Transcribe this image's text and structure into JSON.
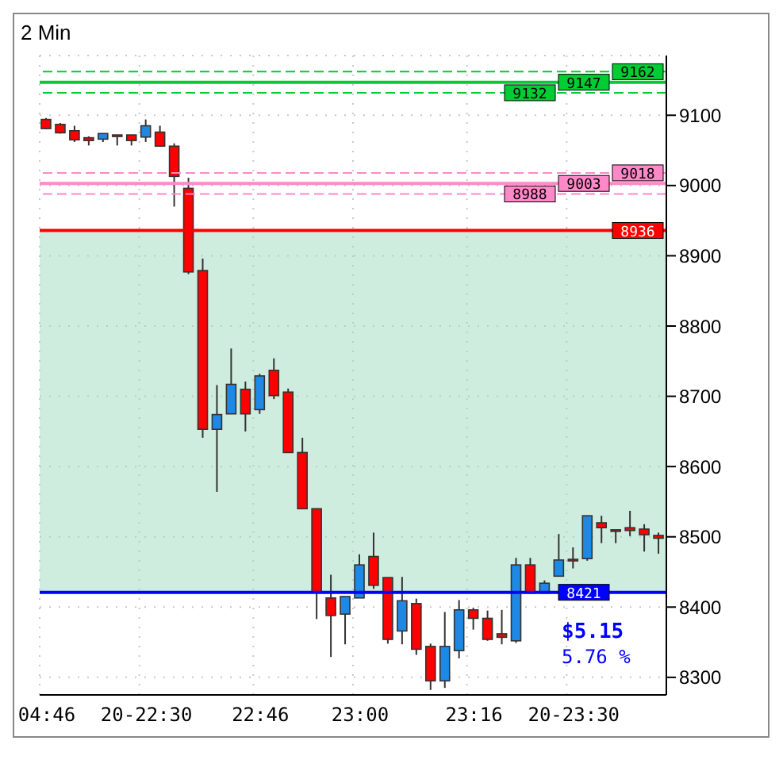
{
  "chart_data": {
    "type": "candlestick",
    "title": "2 Min",
    "categories": [
      "04:46",
      null,
      null,
      null,
      null,
      null,
      null,
      "20-22:30",
      null,
      null,
      null,
      null,
      null,
      null,
      null,
      "22:46",
      null,
      null,
      null,
      null,
      null,
      null,
      "23:00",
      null,
      null,
      null,
      null,
      null,
      null,
      null,
      "23:16",
      null,
      null,
      null,
      null,
      null,
      null,
      "20-23:30",
      null,
      null,
      null,
      null,
      null,
      null
    ],
    "ohlc": [
      [
        9094,
        9096,
        9080,
        9081
      ],
      [
        9087,
        9089,
        9074,
        9075
      ],
      [
        9078,
        9085,
        9062,
        9065
      ],
      [
        9068,
        9070,
        9057,
        9064
      ],
      [
        9066,
        9074,
        9062,
        9074
      ],
      [
        9072,
        9072,
        9057,
        9071
      ],
      [
        9072,
        9072,
        9057,
        9064
      ],
      [
        9069,
        9094,
        9062,
        9085
      ],
      [
        9076,
        9085,
        9056,
        9056
      ],
      [
        9056,
        9060,
        8970,
        9013
      ],
      [
        8996,
        9011,
        8874,
        8877
      ],
      [
        8879,
        8896,
        8641,
        8653
      ],
      [
        8653,
        8716,
        8564,
        8674
      ],
      [
        8675,
        8768,
        8675,
        8717
      ],
      [
        8710,
        8721,
        8650,
        8675
      ],
      [
        8681,
        8732,
        8675,
        8729
      ],
      [
        8737,
        8754,
        8696,
        8701
      ],
      [
        8706,
        8711,
        8620,
        8620
      ],
      [
        8620,
        8641,
        8540,
        8540
      ],
      [
        8540,
        8540,
        8383,
        8422
      ],
      [
        8413,
        8446,
        8329,
        8388
      ],
      [
        8390,
        8415,
        8347,
        8415
      ],
      [
        8413,
        8475,
        8413,
        8460
      ],
      [
        8472,
        8506,
        8426,
        8431
      ],
      [
        8442,
        8442,
        8348,
        8354
      ],
      [
        8366,
        8443,
        8347,
        8409
      ],
      [
        8405,
        8412,
        8332,
        8340
      ],
      [
        8344,
        8348,
        8282,
        8295
      ],
      [
        8295,
        8393,
        8285,
        8344
      ],
      [
        8338,
        8410,
        8327,
        8396
      ],
      [
        8396,
        8399,
        8368,
        8384
      ],
      [
        8384,
        8395,
        8352,
        8354
      ],
      [
        8362,
        8396,
        8347,
        8357
      ],
      [
        8352,
        8470,
        8349,
        8460
      ],
      [
        8460,
        8470,
        8420,
        8420
      ],
      [
        8420,
        8438,
        8420,
        8434
      ],
      [
        8444,
        8504,
        8444,
        8467
      ],
      [
        8468,
        8485,
        8455,
        8466
      ],
      [
        8469,
        8530,
        8466,
        8530
      ],
      [
        8520,
        8530,
        8491,
        8513
      ],
      [
        8510,
        8510,
        8491,
        8509
      ],
      [
        8513,
        8537,
        8501,
        8509
      ],
      [
        8511,
        8518,
        8479,
        8503
      ],
      [
        8502,
        8506,
        8476,
        8498
      ]
    ],
    "colors": [
      "#ff0000",
      "#ff0000",
      "#ff0000",
      "#ff0000",
      "#1e88e5",
      "#ff0000",
      "#ff0000",
      "#1e88e5",
      "#ff0000",
      "#ff0000",
      "#ff0000",
      "#ff0000",
      "#1e88e5",
      "#1e88e5",
      "#ff0000",
      "#1e88e5",
      "#ff0000",
      "#ff0000",
      "#ff0000",
      "#ff0000",
      "#ff0000",
      "#1e88e5",
      "#1e88e5",
      "#ff0000",
      "#ff0000",
      "#1e88e5",
      "#ff0000",
      "#ff0000",
      "#1e88e5",
      "#1e88e5",
      "#ff0000",
      "#ff0000",
      "#ff0000",
      "#1e88e5",
      "#ff0000",
      "#1e88e5",
      "#1e88e5",
      "#ff0000",
      "#1e88e5",
      "#ff0000",
      "#ff0000",
      "#ff0000",
      "#ff0000",
      "#ff0000"
    ],
    "ylim": [
      8275,
      9185
    ],
    "yticks": [
      8300,
      8400,
      8500,
      8600,
      8700,
      8800,
      8900,
      9000,
      9100
    ],
    "grid": true,
    "ref_lines": [
      {
        "axis": "y",
        "value": 9162,
        "label": "9162",
        "color": "#00cc33",
        "line_style": "dashed"
      },
      {
        "axis": "y",
        "value": 9147,
        "label": "9147",
        "color": "#00cc33",
        "line_style": "solid"
      },
      {
        "axis": "y",
        "value": 9132,
        "label": "9132",
        "color": "#00cc33",
        "line_style": "dashed"
      },
      {
        "axis": "y",
        "value": 9018,
        "label": "9018",
        "color": "#ff88c8",
        "line_style": "dashed"
      },
      {
        "axis": "y",
        "value": 9003,
        "label": "9003",
        "color": "#ff88c8",
        "line_style": "solid"
      },
      {
        "axis": "y",
        "value": 8988,
        "label": "8988",
        "color": "#ff88c8",
        "line_style": "dashed"
      },
      {
        "axis": "y",
        "value": 8936,
        "label": "8936",
        "color": "#ff0000",
        "line_style": "solid"
      },
      {
        "axis": "y",
        "value": 8421,
        "label": "8421",
        "color": "#0000ff",
        "line_style": "solid"
      }
    ],
    "bands": [
      {
        "axis": "y",
        "from": 8421,
        "to": 8936,
        "color": "#9fdcbd"
      }
    ],
    "annotations": [
      "$5.15",
      "5.76 %"
    ]
  }
}
